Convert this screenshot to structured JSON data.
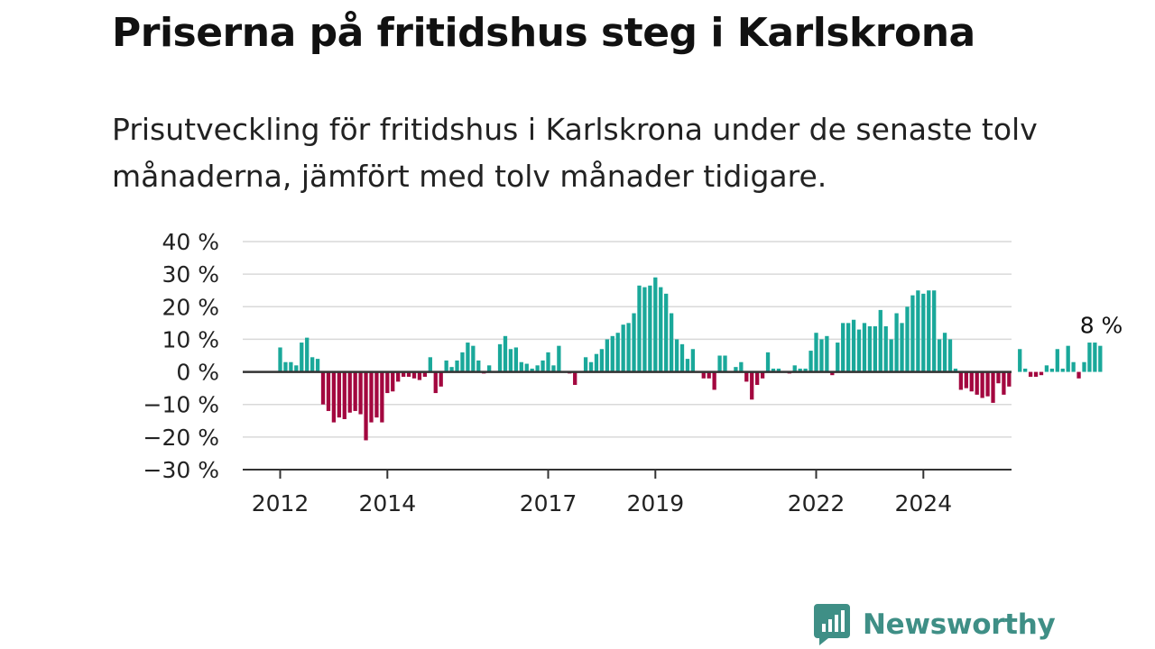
{
  "header": {
    "title": "Priserna på fritidshus steg i Karlskrona",
    "subtitle": "Prisutveckling för fritidshus i Karlskrona under de senaste tolv månaderna, jämfört med tolv månader tidigare."
  },
  "brand": {
    "name": "Newsworthy",
    "icon": "newsworthy-logo-icon",
    "color": "#3f8f86"
  },
  "chart_data": {
    "type": "bar",
    "title": "",
    "xlabel": "",
    "ylabel": "",
    "ylim": [
      -30,
      40
    ],
    "y_ticks": [
      -30,
      -20,
      -10,
      0,
      10,
      20,
      30,
      40
    ],
    "y_tick_labels": [
      "−30 %",
      "−20 %",
      "−10 %",
      "0 %",
      "10 %",
      "20 %",
      "30 %",
      "40 %"
    ],
    "x_tick_labels": [
      "2012",
      "2014",
      "2017",
      "2019",
      "2022",
      "2024"
    ],
    "x_tick_positions": [
      0,
      20,
      50,
      70,
      100,
      120
    ],
    "grid": "horizontal",
    "positive_color": "#1aa89a",
    "negative_color": "#a3073f",
    "zero_line_color": "#333333",
    "last_value_label": "8 %",
    "values": [
      7.5,
      3,
      3,
      2,
      9,
      10.5,
      4.5,
      4,
      -10,
      -12,
      -15.5,
      -14,
      -14.5,
      -12.5,
      -12,
      -13,
      -21,
      -15.5,
      -14,
      -15.5,
      -6.5,
      -6,
      -3,
      -1.5,
      -1.5,
      -2,
      -2.5,
      -1.5,
      4.5,
      -6.5,
      -4.5,
      3.5,
      1.5,
      3.5,
      6,
      9,
      8,
      3.5,
      -0.5,
      2,
      0,
      8.5,
      11,
      7,
      7.5,
      3,
      2.5,
      1,
      2,
      3.5,
      6,
      2,
      8,
      0,
      -0.5,
      -4,
      0,
      4.5,
      3,
      5.5,
      7,
      10,
      11,
      12,
      14.5,
      15,
      18,
      26.5,
      26,
      26.5,
      29,
      26,
      24,
      18,
      10,
      8.5,
      4,
      7,
      0,
      -2,
      -2,
      -5.5,
      5,
      5,
      0,
      1.5,
      3,
      -3,
      -8.5,
      -4,
      -2,
      6,
      1,
      1,
      0,
      -0.5,
      2,
      1,
      1,
      6.5,
      12,
      10,
      11,
      -1,
      9,
      15,
      15,
      16,
      13,
      15,
      14,
      14,
      19,
      14,
      10,
      18,
      15,
      20,
      23.5,
      25,
      24,
      25,
      25,
      10,
      12,
      10,
      1,
      -5.5,
      -5,
      -6,
      -7,
      -8,
      -7.5,
      -9.5,
      -3.5,
      -7,
      -4.5,
      0,
      7,
      1,
      -1.5,
      -1.5,
      -1,
      2,
      1,
      7,
      1,
      8,
      3,
      -2,
      3,
      9,
      9,
      8
    ]
  }
}
